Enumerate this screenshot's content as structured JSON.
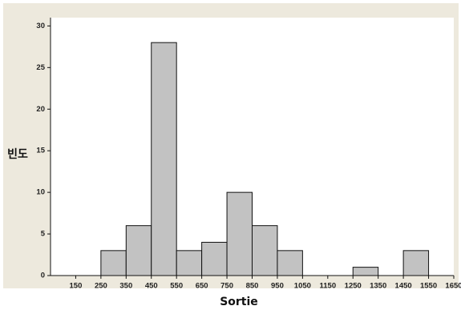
{
  "chart_data": {
    "type": "bar",
    "xlabel": "Sortie",
    "ylabel": "빈도",
    "title": "",
    "categories": [
      "250-350",
      "350-450",
      "450-550",
      "550-650",
      "650-750",
      "750-850",
      "850-950",
      "950-1050",
      "1250-1350",
      "1450-1550"
    ],
    "bins": [
      {
        "start": 250,
        "end": 350,
        "value": 3
      },
      {
        "start": 350,
        "end": 450,
        "value": 6
      },
      {
        "start": 450,
        "end": 550,
        "value": 28
      },
      {
        "start": 550,
        "end": 650,
        "value": 3
      },
      {
        "start": 650,
        "end": 750,
        "value": 4
      },
      {
        "start": 750,
        "end": 850,
        "value": 10
      },
      {
        "start": 850,
        "end": 950,
        "value": 6
      },
      {
        "start": 950,
        "end": 1050,
        "value": 3
      },
      {
        "start": 1250,
        "end": 1350,
        "value": 1
      },
      {
        "start": 1450,
        "end": 1550,
        "value": 3
      }
    ],
    "values": [
      3,
      6,
      28,
      3,
      4,
      10,
      6,
      3,
      1,
      3
    ],
    "xlim": [
      50,
      1650
    ],
    "ylim": [
      0,
      31
    ],
    "xticks": [
      150,
      250,
      350,
      450,
      550,
      650,
      750,
      850,
      950,
      1050,
      1150,
      1250,
      1350,
      1450,
      1550,
      1650
    ],
    "xtick_labels": [
      "150",
      "250",
      "350",
      "450",
      "550",
      "650",
      "750",
      "850",
      "950",
      "1050",
      "1150",
      "1250",
      "1350",
      "1450",
      "1550",
      "1650"
    ],
    "yticks": [
      0,
      5,
      10,
      15,
      20,
      25,
      30
    ],
    "ytick_labels": [
      "0",
      "5",
      "10",
      "15",
      "20",
      "25",
      "30"
    ],
    "grid": false,
    "legend": false,
    "colors": {
      "bar_fill": "#c2c2c2",
      "bar_stroke": "#111111",
      "frame_bg": "#ede9dd",
      "plot_bg": "#ffffff",
      "axis": "#111111"
    }
  }
}
